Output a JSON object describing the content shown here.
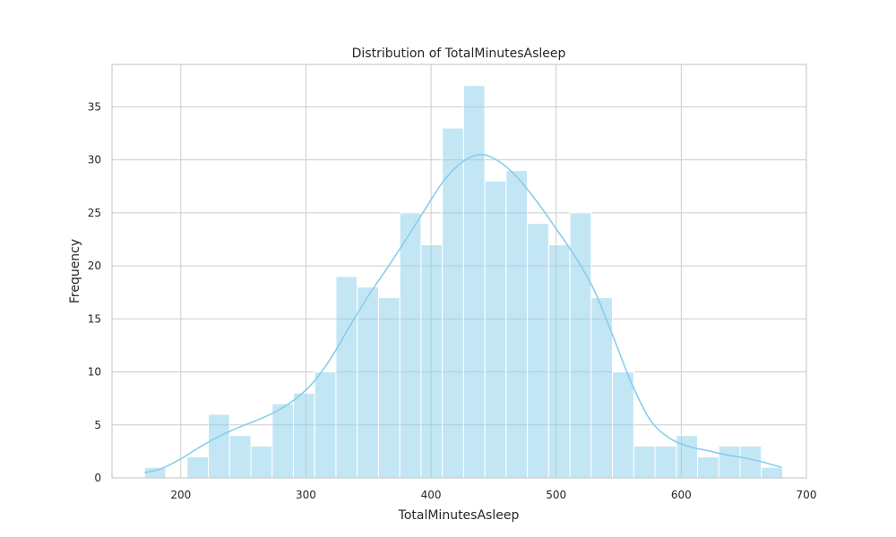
{
  "chart_data": {
    "type": "bar",
    "title": "Distribution of TotalMinutesAsleep",
    "xlabel": "TotalMinutesAsleep",
    "ylabel": "Frequency",
    "xlim": [
      145,
      700
    ],
    "ylim": [
      0,
      39
    ],
    "xticks": [
      200,
      300,
      400,
      500,
      600,
      700
    ],
    "yticks": [
      0,
      5,
      10,
      15,
      20,
      25,
      30,
      35
    ],
    "grid": true,
    "legend": "none",
    "colors": {
      "bar": "#87ceeb",
      "bar_edge": "#ffffff",
      "kde": "#87ceeb"
    },
    "bins": {
      "start": 171,
      "width": 17,
      "counts": [
        1,
        0,
        2,
        6,
        4,
        3,
        7,
        8,
        10,
        19,
        18,
        17,
        25,
        22,
        33,
        37,
        28,
        29,
        24,
        22,
        25,
        17,
        10,
        3,
        3,
        4,
        2,
        3,
        3,
        1
      ]
    },
    "kde": {
      "x": [
        171,
        185,
        200,
        215,
        230,
        245,
        260,
        275,
        290,
        305,
        320,
        335,
        350,
        365,
        380,
        395,
        410,
        425,
        440,
        455,
        470,
        485,
        500,
        515,
        530,
        545,
        560,
        575,
        590,
        605,
        620,
        635,
        650,
        665,
        680
      ],
      "y": [
        0.5,
        0.9,
        1.8,
        2.9,
        3.9,
        4.7,
        5.4,
        6.2,
        7.3,
        8.9,
        11.3,
        14.3,
        17.2,
        19.8,
        22.5,
        25.3,
        28.0,
        29.8,
        30.5,
        29.8,
        28.2,
        26.0,
        23.5,
        20.9,
        17.8,
        13.5,
        9.0,
        5.5,
        3.8,
        3.0,
        2.6,
        2.2,
        1.9,
        1.5,
        1.0
      ]
    }
  }
}
